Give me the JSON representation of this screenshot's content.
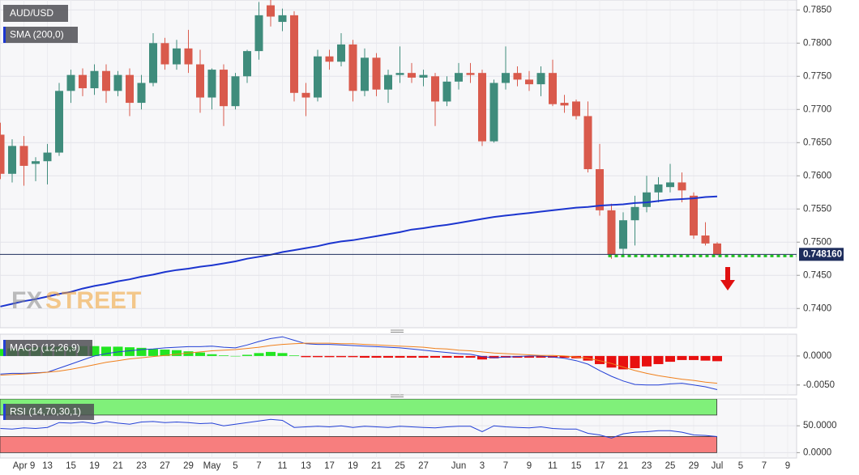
{
  "chart_data": [
    {
      "type": "candlestick",
      "title": "AUD/USD",
      "open": [
        0.7662,
        0.7603,
        0.7645,
        0.7618,
        0.7622,
        0.7635,
        0.7728,
        0.7752,
        0.7732,
        0.7758,
        0.7728,
        0.7752,
        0.771,
        0.774,
        0.78,
        0.7768,
        0.7792,
        0.7768,
        0.7718,
        0.776,
        0.7705,
        0.775,
        0.7788,
        0.7857,
        0.7832,
        0.7842,
        0.7725,
        0.7718,
        0.778,
        0.7772,
        0.7798,
        0.7728,
        0.7778,
        0.773,
        0.7752,
        0.7755,
        0.7748,
        0.775,
        0.7712,
        0.7742,
        0.7755,
        0.7755,
        0.7652,
        0.774,
        0.7755,
        0.7745,
        0.7738,
        0.7755,
        0.771,
        0.7712,
        0.769,
        0.761,
        0.7548,
        0.749,
        0.7533,
        0.7553,
        0.7575,
        0.7583,
        0.759,
        0.757,
        0.751,
        0.7498
      ],
      "high": [
        0.768,
        0.7655,
        0.766,
        0.7628,
        0.7648,
        0.774,
        0.776,
        0.7762,
        0.7768,
        0.7768,
        0.7758,
        0.7762,
        0.7752,
        0.7815,
        0.7808,
        0.7805,
        0.782,
        0.779,
        0.7762,
        0.7768,
        0.7755,
        0.779,
        0.7862,
        0.7865,
        0.7852,
        0.7848,
        0.774,
        0.779,
        0.779,
        0.7815,
        0.7805,
        0.7792,
        0.7785,
        0.776,
        0.7795,
        0.777,
        0.776,
        0.7755,
        0.775,
        0.777,
        0.777,
        0.776,
        0.7745,
        0.7795,
        0.7765,
        0.7758,
        0.7765,
        0.7775,
        0.7722,
        0.7715,
        0.7712,
        0.7648,
        0.7558,
        0.7545,
        0.757,
        0.76,
        0.7598,
        0.7618,
        0.7605,
        0.7575,
        0.753,
        0.75
      ],
      "low": [
        0.7595,
        0.759,
        0.7585,
        0.7592,
        0.7587,
        0.763,
        0.771,
        0.772,
        0.7722,
        0.771,
        0.772,
        0.769,
        0.77,
        0.7735,
        0.776,
        0.776,
        0.7755,
        0.7695,
        0.77,
        0.7675,
        0.77,
        0.774,
        0.7775,
        0.7825,
        0.7818,
        0.7712,
        0.769,
        0.7712,
        0.776,
        0.7765,
        0.7712,
        0.772,
        0.772,
        0.771,
        0.774,
        0.774,
        0.7735,
        0.7675,
        0.7705,
        0.773,
        0.774,
        0.7645,
        0.765,
        0.773,
        0.7735,
        0.7728,
        0.772,
        0.7705,
        0.7695,
        0.7685,
        0.7605,
        0.754,
        0.7475,
        0.748,
        0.7495,
        0.7545,
        0.756,
        0.7575,
        0.756,
        0.7505,
        0.7495,
        0.748
      ],
      "close": [
        0.7603,
        0.7645,
        0.7615,
        0.7622,
        0.7635,
        0.7728,
        0.7752,
        0.7732,
        0.7758,
        0.7728,
        0.7752,
        0.771,
        0.774,
        0.78,
        0.7768,
        0.7792,
        0.7768,
        0.7718,
        0.776,
        0.7705,
        0.775,
        0.7788,
        0.7842,
        0.784,
        0.7842,
        0.7725,
        0.7718,
        0.778,
        0.7772,
        0.7798,
        0.7728,
        0.7778,
        0.773,
        0.7752,
        0.7755,
        0.7748,
        0.7752,
        0.7712,
        0.7742,
        0.7755,
        0.7752,
        0.7652,
        0.774,
        0.7755,
        0.7745,
        0.7738,
        0.7755,
        0.7708,
        0.7706,
        0.769,
        0.761,
        0.7548,
        0.7481,
        0.7533,
        0.7553,
        0.7575,
        0.7587,
        0.759,
        0.7578,
        0.751,
        0.7498,
        0.7482
      ],
      "up_color": "#3f8c7c",
      "down_color": "#d95a4c",
      "sma": {
        "name": "SMA (200,0)",
        "color": "#1c35cf",
        "values": [
          0.7403,
          0.7407,
          0.7411,
          0.7414,
          0.7418,
          0.7422,
          0.7425,
          0.743,
          0.7434,
          0.7437,
          0.7441,
          0.7444,
          0.7448,
          0.7451,
          0.7455,
          0.7458,
          0.746,
          0.7463,
          0.7465,
          0.7468,
          0.7471,
          0.7475,
          0.7478,
          0.7481,
          0.7485,
          0.7488,
          0.7491,
          0.7494,
          0.7498,
          0.7501,
          0.7503,
          0.7506,
          0.7509,
          0.7512,
          0.7515,
          0.7519,
          0.7521,
          0.7524,
          0.7526,
          0.7529,
          0.7532,
          0.7535,
          0.7538,
          0.754,
          0.7542,
          0.7544,
          0.7546,
          0.7548,
          0.755,
          0.7552,
          0.7553,
          0.7555,
          0.7556,
          0.7557,
          0.7559,
          0.756,
          0.7562,
          0.7564,
          0.7565,
          0.7566,
          0.7568,
          0.7569
        ]
      },
      "last_price": {
        "value": 0.74816,
        "label": "0.748160"
      },
      "ylim": [
        0.7371,
        0.7865
      ],
      "yticks": [
        {
          "value": 0.785,
          "label": "0.7850"
        },
        {
          "value": 0.78,
          "label": "0.7800"
        },
        {
          "value": 0.775,
          "label": "0.7750"
        },
        {
          "value": 0.77,
          "label": "0.7700"
        },
        {
          "value": 0.765,
          "label": "0.7650"
        },
        {
          "value": 0.76,
          "label": "0.7600"
        },
        {
          "value": 0.755,
          "label": "0.7550"
        },
        {
          "value": 0.75,
          "label": "0.7500"
        },
        {
          "value": 0.745,
          "label": "0.7450"
        },
        {
          "value": 0.74,
          "label": "0.7400"
        }
      ],
      "grid": true,
      "watermark": [
        "FX",
        "STREET"
      ],
      "xtick_labels": [
        "Apr 9",
        "13",
        "15",
        "19",
        "21",
        "23",
        "27",
        "29",
        "May",
        "5",
        "7",
        "11",
        "13",
        "17",
        "19",
        "21",
        "25",
        "27",
        "Jun",
        "3",
        "7",
        "9",
        "11",
        "15",
        "17",
        "21",
        "23",
        "25",
        "29",
        "Jul",
        "5",
        "7",
        "9"
      ]
    },
    {
      "type": "macd",
      "title": "MACD (12,26,9)",
      "histogram": [
        0.0012,
        0.0013,
        0.0014,
        0.0015,
        0.0016,
        0.0016,
        0.0016,
        0.0017,
        0.0017,
        0.0016,
        0.0016,
        0.0015,
        0.0014,
        0.0012,
        0.0011,
        0.001,
        0.0008,
        0.0006,
        0.0003,
        0.0001,
        0.0,
        0.0002,
        0.0005,
        0.0007,
        0.0005,
        0.0001,
        -0.0002,
        -0.0002,
        -0.0002,
        -0.0002,
        -0.0002,
        -0.0003,
        -0.0003,
        -0.0003,
        -0.0003,
        -0.0003,
        -0.0003,
        -0.0003,
        -0.0003,
        -0.0003,
        -0.0003,
        -0.0006,
        -0.0004,
        -0.0003,
        -0.0003,
        -0.0003,
        -0.0003,
        -0.0003,
        -0.0003,
        -0.0004,
        -0.0008,
        -0.0014,
        -0.002,
        -0.0023,
        -0.0021,
        -0.0018,
        -0.0014,
        -0.001,
        -0.0007,
        -0.0007,
        -0.0008,
        -0.0009
      ],
      "up_color": "#22e522",
      "down_color": "#e81010",
      "macd": {
        "color": "#2340d6",
        "values": [
          -0.0031,
          -0.003,
          -0.003,
          -0.0029,
          -0.0028,
          -0.0021,
          -0.0014,
          -0.0007,
          0.0,
          0.0004,
          0.0007,
          0.0009,
          0.0011,
          0.0012,
          0.0014,
          0.0015,
          0.0016,
          0.0016,
          0.0017,
          0.0015,
          0.0014,
          0.0019,
          0.0025,
          0.003,
          0.0033,
          0.0027,
          0.0021,
          0.002,
          0.002,
          0.0019,
          0.0018,
          0.0017,
          0.0016,
          0.0015,
          0.0014,
          0.0012,
          0.001,
          0.0008,
          0.0006,
          0.0004,
          0.0003,
          -0.0001,
          -0.0003,
          -0.0002,
          -0.0001,
          0.0,
          0.0,
          -0.0002,
          -0.0004,
          -0.0008,
          -0.0014,
          -0.0025,
          -0.0035,
          -0.0043,
          -0.0049,
          -0.005,
          -0.005,
          -0.0048,
          -0.0047,
          -0.005,
          -0.0053,
          -0.0058
        ]
      },
      "signal": {
        "color": "#f0801c",
        "values": [
          -0.0033,
          -0.0032,
          -0.0031,
          -0.003,
          -0.0028,
          -0.0026,
          -0.0023,
          -0.0019,
          -0.0015,
          -0.0011,
          -0.0008,
          -0.0005,
          -0.0003,
          -0.0001,
          0.0001,
          0.0003,
          0.0005,
          0.0007,
          0.0009,
          0.001,
          0.0011,
          0.0013,
          0.0015,
          0.0018,
          0.002,
          0.0021,
          0.0022,
          0.0022,
          0.0022,
          0.0021,
          0.0021,
          0.002,
          0.0019,
          0.0018,
          0.0017,
          0.0016,
          0.0015,
          0.0013,
          0.0012,
          0.001,
          0.0009,
          0.0007,
          0.0005,
          0.0004,
          0.0003,
          0.0002,
          0.0001,
          0.0001,
          0.0,
          -0.0002,
          -0.0004,
          -0.0008,
          -0.0013,
          -0.0019,
          -0.0025,
          -0.003,
          -0.0034,
          -0.0037,
          -0.004,
          -0.0042,
          -0.0045,
          -0.0047
        ]
      },
      "ylim": [
        -0.0067,
        0.00375
      ],
      "yticks": [
        {
          "value": 0,
          "label": "0.0000"
        },
        {
          "value": -0.005,
          "label": "-0.0050"
        }
      ]
    },
    {
      "type": "rsi",
      "title": "RSI (14,70,30,1)",
      "values": [
        45,
        44,
        46,
        45,
        47,
        56,
        55,
        57,
        54,
        58,
        55,
        53,
        57,
        58,
        56,
        57,
        56,
        54,
        55,
        50,
        53,
        56,
        59,
        62,
        60,
        47,
        48,
        49,
        48,
        50,
        47,
        49,
        48,
        47,
        49,
        48,
        47,
        46,
        48,
        49,
        49,
        39,
        50,
        48,
        47,
        46,
        48,
        45,
        44,
        44,
        36,
        33,
        27,
        35,
        38,
        39,
        41,
        41,
        38,
        33,
        32,
        30
      ],
      "color": "#2340d6",
      "bands": [
        {
          "from": 70,
          "to": 100,
          "color": "#80f07a"
        },
        {
          "from": 0,
          "to": 30,
          "color": "#f77e7e"
        }
      ],
      "ylim": [
        -10,
        100
      ],
      "yticks": [
        {
          "value": 50,
          "label": "50.0000"
        },
        {
          "value": 0,
          "label": "0.0000"
        }
      ]
    }
  ]
}
